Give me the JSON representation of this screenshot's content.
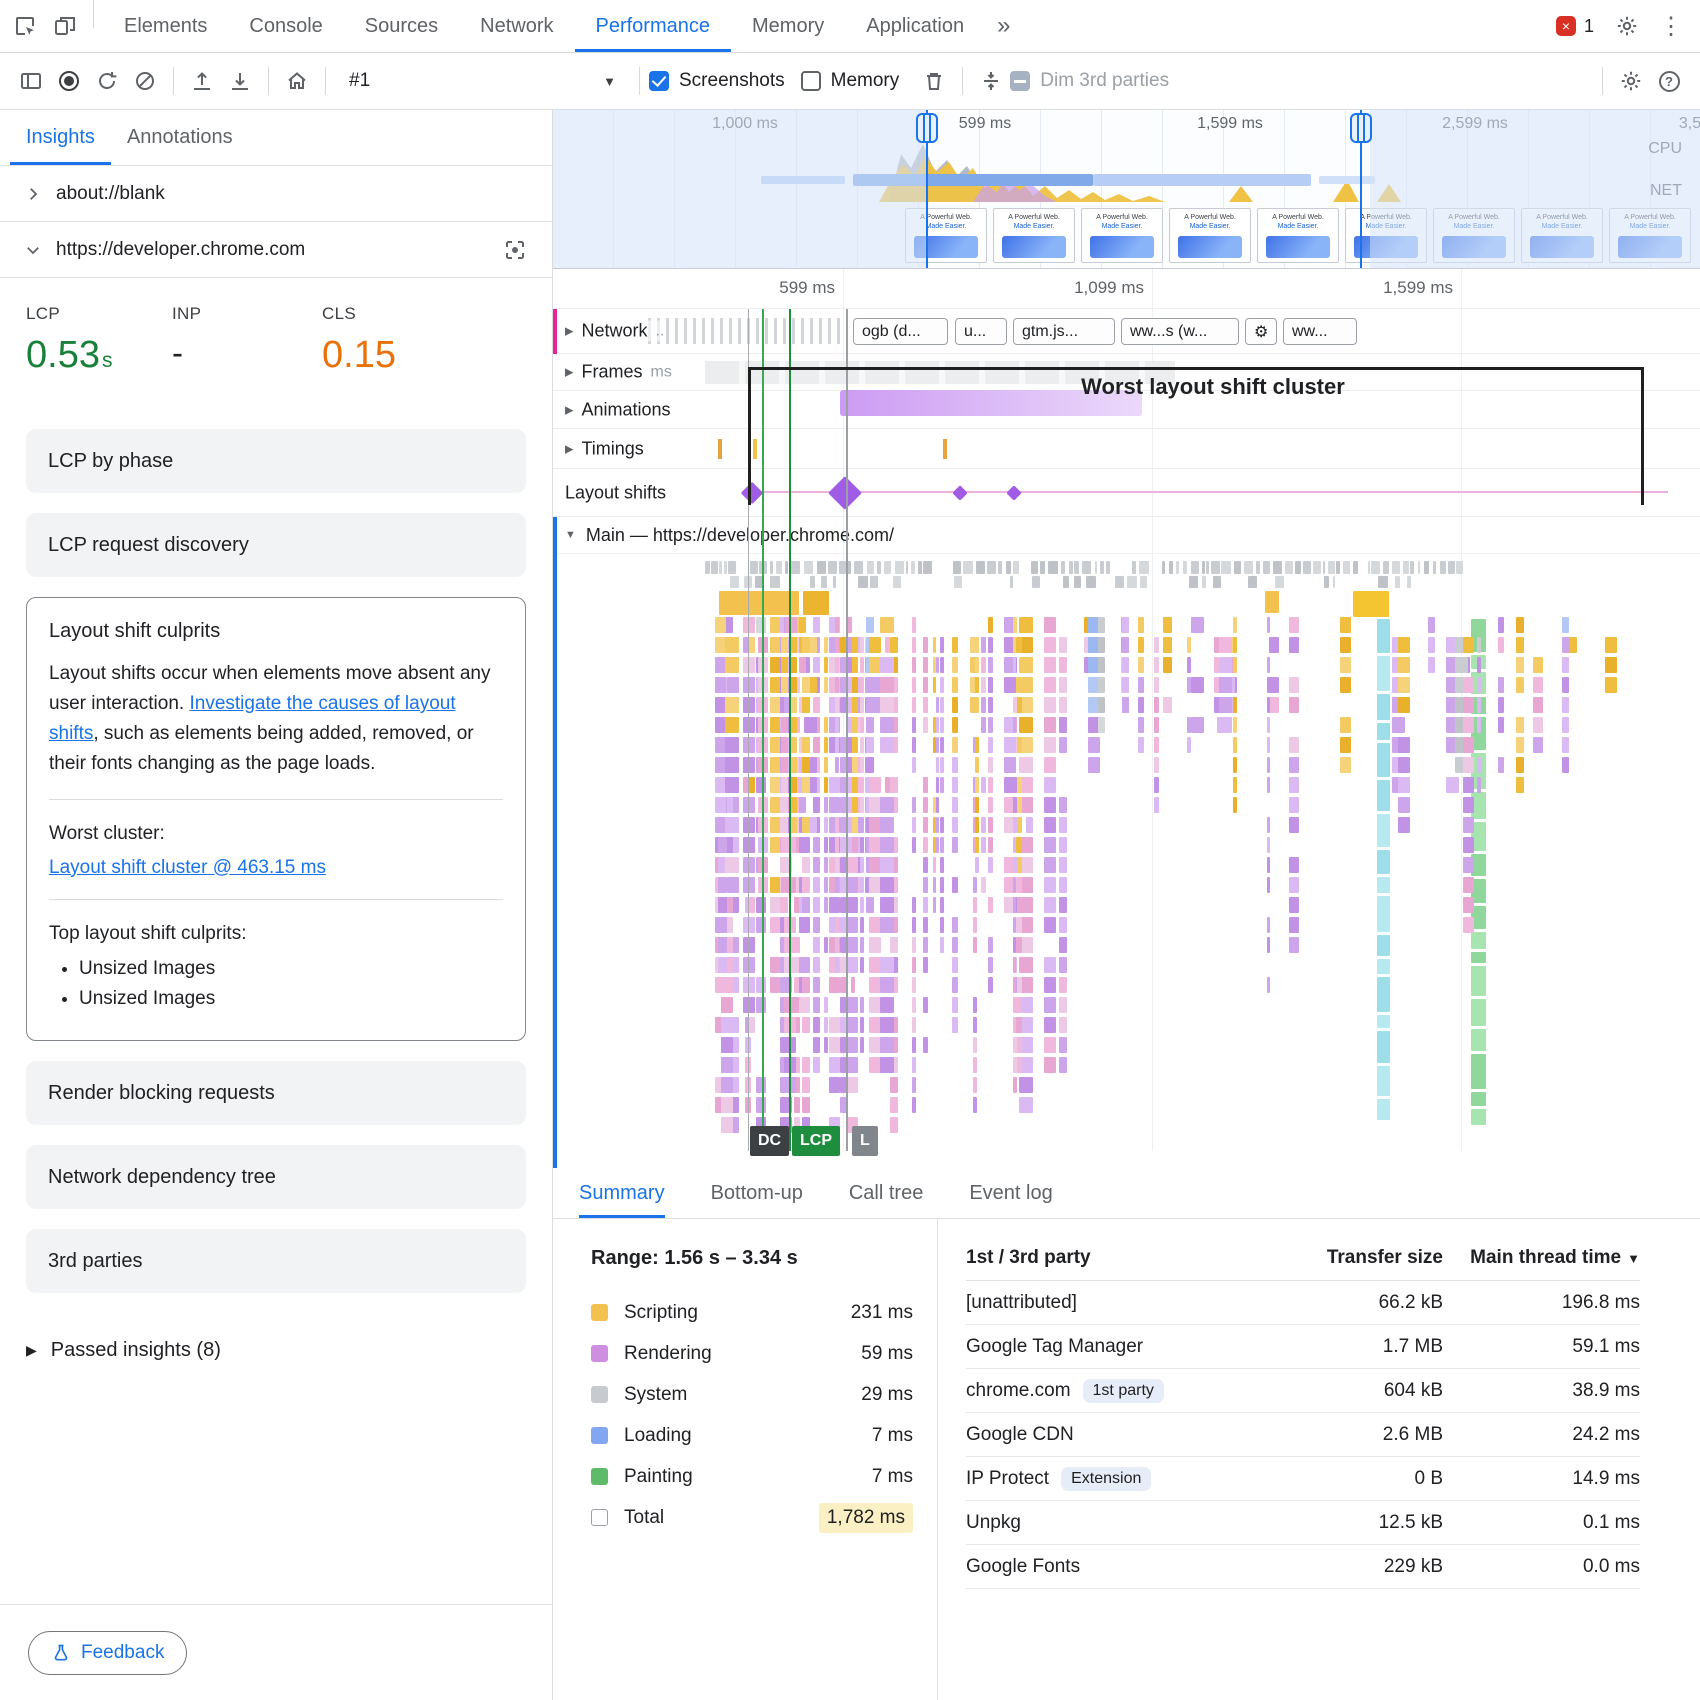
{
  "top_bar": {
    "tabs": [
      "Elements",
      "Console",
      "Sources",
      "Network",
      "Performance",
      "Memory",
      "Application"
    ],
    "active_tab": "Performance",
    "error_count": "1"
  },
  "toolbar": {
    "session_label": "#1",
    "screenshots_label": "Screenshots",
    "memory_label": "Memory",
    "dim_label": "Dim 3rd parties"
  },
  "overview": {
    "time_labels": [
      "1,000 ms",
      "599 ms",
      "1,599 ms",
      "2,599 ms",
      "3,5"
    ],
    "cpu_label": "CPU",
    "net_label": "NET",
    "thumbnail_line1": "A Powerful Web.",
    "thumbnail_line2": "Made Easier."
  },
  "sidebar": {
    "tabs": [
      "Insights",
      "Annotations"
    ],
    "active_tab": "Insights",
    "frame_blank": "about://blank",
    "frame_main": "https://developer.chrome.com",
    "metrics": [
      {
        "label": "LCP",
        "value": "0.53",
        "unit": "s"
      },
      {
        "label": "INP",
        "value": "-",
        "unit": ""
      },
      {
        "label": "CLS",
        "value": "0.15",
        "unit": ""
      }
    ],
    "cards_top": [
      "LCP by phase",
      "LCP request discovery"
    ],
    "culprits": {
      "title": "Layout shift culprits",
      "body_pre": "Layout shifts occur when elements move absent any user interaction. ",
      "body_link": "Investigate the causes of layout shifts",
      "body_post": ", such as elements being added, removed, or their fonts changing as the page loads.",
      "worst_label": "Worst cluster:",
      "worst_link": "Layout shift cluster @ 463.15 ms",
      "top_label": "Top layout shift culprits:",
      "bullets": [
        "Unsized Images",
        "Unsized Images"
      ]
    },
    "cards_bottom": [
      "Render blocking requests",
      "Network dependency tree",
      "3rd parties"
    ],
    "passed_insights": "Passed insights (8)",
    "feedback_label": "Feedback"
  },
  "timeline": {
    "ruler_labels": [
      "599 ms",
      "1,099 ms",
      "1,599 ms"
    ],
    "tracks": [
      "Network",
      "Frames",
      "Animations",
      "Timings",
      "Layout shifts"
    ],
    "frames_unit": "ms",
    "network_pills": [
      "ogb (d...",
      "u...",
      "gtm.js...",
      "ww...s (w...",
      "ww..."
    ],
    "cluster_label": "Worst layout shift cluster",
    "main_track_label": "Main — https://developer.chrome.com/",
    "marker_chips": [
      "DC",
      "LCP",
      "L"
    ]
  },
  "bottom": {
    "tabs": [
      "Summary",
      "Bottom-up",
      "Call tree",
      "Event log"
    ],
    "active_tab": "Summary",
    "range_label": "Range: 1.56 s – 3.34 s",
    "legend": [
      {
        "name": "Scripting",
        "value": "231 ms",
        "color": "#F2C14E"
      },
      {
        "name": "Rendering",
        "value": "59 ms",
        "color": "#CE8FE0"
      },
      {
        "name": "System",
        "value": "29 ms",
        "color": "#C7CBCF"
      },
      {
        "name": "Loading",
        "value": "7 ms",
        "color": "#82A7F0"
      },
      {
        "name": "Painting",
        "value": "7 ms",
        "color": "#5FBB6A"
      },
      {
        "name": "Total",
        "value": "1,782 ms",
        "color": "#FFFFFF",
        "highlight": true
      }
    ],
    "table": {
      "headers": [
        "1st / 3rd party",
        "Transfer size",
        "Main thread time"
      ],
      "sort_glyph": "▼",
      "rows": [
        {
          "name": "[unattributed]",
          "transfer": "66.2 kB",
          "time": "196.8 ms"
        },
        {
          "name": "Google Tag Manager",
          "transfer": "1.7 MB",
          "time": "59.1 ms"
        },
        {
          "name": "chrome.com",
          "badge": "1st party",
          "transfer": "604 kB",
          "time": "38.9 ms"
        },
        {
          "name": "Google CDN",
          "transfer": "2.6 MB",
          "time": "24.2 ms"
        },
        {
          "name": "IP Protect",
          "badge": "Extension",
          "transfer": "0 B",
          "time": "14.9 ms"
        },
        {
          "name": "Unpkg",
          "transfer": "12.5 kB",
          "time": "0.1 ms"
        },
        {
          "name": "Google Fonts",
          "transfer": "229 kB",
          "time": "0.0 ms"
        }
      ]
    }
  },
  "icons": {
    "more_tabs": "»",
    "overflow_menu": "⋮",
    "error_close": "×",
    "dropdown_caret": "▼",
    "triangle_right": "▶",
    "triangle_down": "▼",
    "help": "?",
    "truncation_dots": ".."
  },
  "colors": {
    "accent_blue": "#1A73E8",
    "good_green": "#188038",
    "warn_orange": "#E8710A",
    "text_primary": "#202124",
    "text_secondary": "#5F6368"
  }
}
